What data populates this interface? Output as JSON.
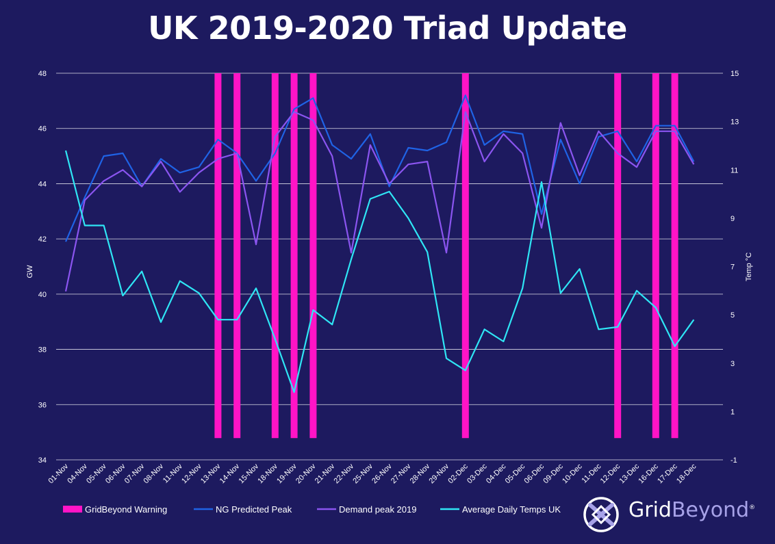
{
  "title": "UK 2019-2020 Triad Update",
  "colors": {
    "background": "#1d1a5f",
    "warning": "#ff14c6",
    "ng_predicted": "#1f63e6",
    "demand": "#8b55f0",
    "temps": "#2fe6f5",
    "grid": "#ffffff"
  },
  "chart_data": {
    "type": "line",
    "title": "UK 2019-2020 Triad Update",
    "ylabel": "GW",
    "y2label": "Temp °C",
    "ylim": [
      34,
      48
    ],
    "yticks": [
      34,
      36,
      38,
      40,
      42,
      44,
      46,
      48
    ],
    "y2lim": [
      -1,
      15
    ],
    "y2ticks": [
      -1,
      1,
      3,
      5,
      7,
      9,
      11,
      13,
      15
    ],
    "categories": [
      "01-Nov",
      "04-Nov",
      "05-Nov",
      "06-Nov",
      "07-Nov",
      "08-Nov",
      "11-Nov",
      "12-Nov",
      "13-Nov",
      "14-Nov",
      "15-Nov",
      "18-Nov",
      "19-Nov",
      "20-Nov",
      "21-Nov",
      "22-Nov",
      "25-Nov",
      "26-Nov",
      "27-Nov",
      "28-Nov",
      "29-Nov",
      "02-Dec",
      "03-Dec",
      "04-Dec",
      "05-Dec",
      "06-Dec",
      "09-Dec",
      "10-Dec",
      "11-Dec",
      "12-Dec",
      "13-Dec",
      "16-Dec",
      "17-Dec",
      "18-Dec"
    ],
    "series": [
      {
        "name": "NG Predicted Peak",
        "axis": "left",
        "values": [
          41.9,
          43.5,
          45.0,
          45.1,
          43.9,
          44.9,
          44.4,
          44.6,
          45.6,
          45.1,
          44.1,
          45.1,
          46.7,
          47.1,
          45.4,
          44.9,
          45.8,
          43.9,
          45.3,
          45.2,
          45.5,
          47.2,
          45.4,
          45.9,
          45.8,
          42.9,
          45.6,
          44.0,
          45.7,
          45.9,
          44.8,
          46.1,
          46.1,
          44.8
        ]
      },
      {
        "name": "Demand peak 2019",
        "axis": "left",
        "values": [
          40.1,
          43.4,
          44.1,
          44.5,
          43.9,
          44.8,
          43.7,
          44.4,
          44.9,
          45.1,
          41.8,
          45.7,
          46.6,
          46.3,
          45.0,
          41.5,
          45.4,
          44.0,
          44.7,
          44.8,
          41.5,
          46.6,
          44.8,
          45.8,
          45.1,
          42.4,
          46.2,
          44.3,
          45.9,
          45.1,
          44.6,
          45.9,
          45.9,
          44.7
        ]
      },
      {
        "name": "Average Daily Temps UK",
        "axis": "right",
        "values": [
          11.8,
          8.7,
          8.7,
          5.8,
          6.8,
          4.7,
          6.4,
          5.9,
          4.8,
          4.8,
          6.1,
          4.0,
          1.8,
          5.2,
          4.6,
          7.3,
          9.8,
          10.1,
          9.0,
          7.6,
          3.2,
          2.7,
          4.4,
          3.9,
          6.1,
          10.5,
          5.9,
          6.9,
          4.4,
          4.5,
          6.0,
          5.3,
          3.7,
          4.8
        ]
      }
    ],
    "warnings": {
      "name": "GridBeyond Warning",
      "dates": [
        "13-Nov",
        "14-Nov",
        "18-Nov",
        "19-Nov",
        "20-Nov",
        "02-Dec",
        "12-Dec",
        "16-Dec",
        "17-Dec"
      ]
    },
    "legend": [
      "GridBeyond Warning",
      "NG Predicted Peak",
      "Demand peak 2019",
      "Average Daily Temps UK"
    ],
    "legend_position": "bottom-left"
  },
  "logo": {
    "part1": "Grid",
    "part2": "Beyond",
    "mark": "®"
  }
}
